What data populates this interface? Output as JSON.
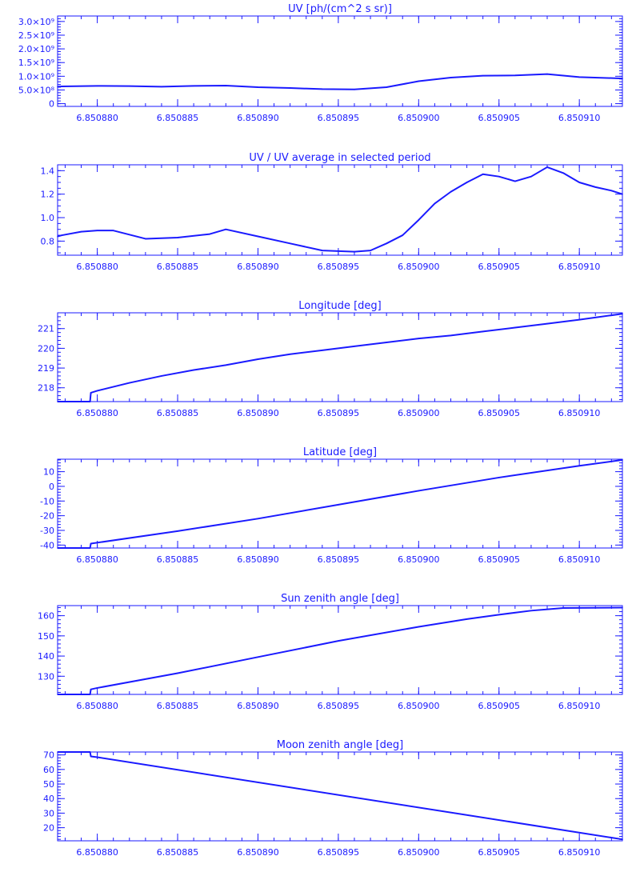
{
  "theme": {
    "color": "#1a1aff"
  },
  "chart_data": [
    {
      "type": "line",
      "title": "UV [ph/(cm^2 s sr)]",
      "xlim": [
        6.85087753,
        6.85091268
      ],
      "ylim": [
        -0.1,
        3.2
      ],
      "xticks": [
        {
          "v": 6.85088,
          "label": "6.850880"
        },
        {
          "v": 6.850885,
          "label": "6.850885"
        },
        {
          "v": 6.85089,
          "label": "6.850890"
        },
        {
          "v": 6.850895,
          "label": "6.850895"
        },
        {
          "v": 6.8509,
          "label": "6.850900"
        },
        {
          "v": 6.850905,
          "label": "6.850905"
        },
        {
          "v": 6.85091,
          "label": "6.850910"
        }
      ],
      "yticks": [
        {
          "v": 0,
          "label": "0"
        },
        {
          "v": 0.5,
          "label": "5.0×10⁸"
        },
        {
          "v": 1.0,
          "label": "1.0×10⁹"
        },
        {
          "v": 1.5,
          "label": "1.5×10⁹"
        },
        {
          "v": 2.0,
          "label": "2.0×10⁹"
        },
        {
          "v": 2.5,
          "label": "2.5×10⁹"
        },
        {
          "v": 3.0,
          "label": "3.0×10⁹"
        }
      ],
      "y_unit_scale": 1000000000.0,
      "y_minor": 0.1,
      "x": [
        6.85087753,
        6.8508778,
        6.85088,
        6.850882,
        6.850884,
        6.850886,
        6.850888,
        6.85089,
        6.850892,
        6.850894,
        6.850896,
        6.850898,
        6.8509,
        6.850902,
        6.850904,
        6.850906,
        6.850908,
        6.85091,
        6.85091268
      ],
      "y": [
        0.62,
        0.63,
        0.65,
        0.64,
        0.62,
        0.65,
        0.66,
        0.6,
        0.57,
        0.53,
        0.52,
        0.6,
        0.82,
        0.95,
        1.02,
        1.03,
        1.08,
        0.97,
        0.92
      ]
    },
    {
      "type": "line",
      "title": "UV / UV average in selected period",
      "xlim": [
        6.85087753,
        6.85091268
      ],
      "ylim": [
        0.68,
        1.45
      ],
      "xticks": [
        {
          "v": 6.85088,
          "label": "6.850880"
        },
        {
          "v": 6.850885,
          "label": "6.850885"
        },
        {
          "v": 6.85089,
          "label": "6.850890"
        },
        {
          "v": 6.850895,
          "label": "6.850895"
        },
        {
          "v": 6.8509,
          "label": "6.850900"
        },
        {
          "v": 6.850905,
          "label": "6.850905"
        },
        {
          "v": 6.85091,
          "label": "6.850910"
        }
      ],
      "yticks": [
        {
          "v": 0.8,
          "label": "0.8"
        },
        {
          "v": 1.0,
          "label": "1.0"
        },
        {
          "v": 1.2,
          "label": "1.2"
        },
        {
          "v": 1.4,
          "label": "1.4"
        }
      ],
      "y_minor": 0.05,
      "x": [
        6.85087753,
        6.8508778,
        6.850879,
        6.85088,
        6.850881,
        6.850883,
        6.850885,
        6.850887,
        6.850888,
        6.85089,
        6.850892,
        6.850894,
        6.850896,
        6.850897,
        6.850898,
        6.850899,
        6.8509,
        6.850901,
        6.850902,
        6.850903,
        6.850904,
        6.850905,
        6.850906,
        6.850907,
        6.850908,
        6.850909,
        6.85091,
        6.850911,
        6.850912,
        6.85091268
      ],
      "y": [
        0.84,
        0.85,
        0.88,
        0.89,
        0.89,
        0.82,
        0.83,
        0.86,
        0.9,
        0.84,
        0.78,
        0.72,
        0.71,
        0.72,
        0.78,
        0.85,
        0.98,
        1.12,
        1.22,
        1.3,
        1.37,
        1.35,
        1.31,
        1.35,
        1.43,
        1.38,
        1.3,
        1.26,
        1.23,
        1.2
      ]
    },
    {
      "type": "line",
      "title": "Longitude [deg]",
      "xlim": [
        6.85087753,
        6.85091268
      ],
      "ylim": [
        217.3,
        221.8
      ],
      "xticks": [
        {
          "v": 6.85088,
          "label": "6.850880"
        },
        {
          "v": 6.850885,
          "label": "6.850885"
        },
        {
          "v": 6.85089,
          "label": "6.850890"
        },
        {
          "v": 6.850895,
          "label": "6.850895"
        },
        {
          "v": 6.8509,
          "label": "6.850900"
        },
        {
          "v": 6.850905,
          "label": "6.850905"
        },
        {
          "v": 6.85091,
          "label": "6.850910"
        }
      ],
      "yticks": [
        {
          "v": 218,
          "label": "218"
        },
        {
          "v": 219,
          "label": "219"
        },
        {
          "v": 220,
          "label": "220"
        },
        {
          "v": 221,
          "label": "221"
        }
      ],
      "y_minor": 0.2,
      "x": [
        6.85087753,
        6.85087955,
        6.8508796,
        6.85088,
        6.850882,
        6.850884,
        6.850886,
        6.850888,
        6.85089,
        6.850892,
        6.850894,
        6.850896,
        6.850898,
        6.8509,
        6.850902,
        6.850904,
        6.850906,
        6.850908,
        6.85091,
        6.85091268
      ],
      "y": [
        217.3,
        217.3,
        217.75,
        217.85,
        218.25,
        218.6,
        218.9,
        219.15,
        219.45,
        219.7,
        219.9,
        220.1,
        220.3,
        220.5,
        220.65,
        220.85,
        221.05,
        221.25,
        221.45,
        221.75
      ]
    },
    {
      "type": "line",
      "title": "Latitude [deg]",
      "xlim": [
        6.85087753,
        6.85091268
      ],
      "ylim": [
        -42,
        18.5
      ],
      "xticks": [
        {
          "v": 6.85088,
          "label": "6.850880"
        },
        {
          "v": 6.850885,
          "label": "6.850885"
        },
        {
          "v": 6.85089,
          "label": "6.850890"
        },
        {
          "v": 6.850895,
          "label": "6.850895"
        },
        {
          "v": 6.8509,
          "label": "6.850900"
        },
        {
          "v": 6.850905,
          "label": "6.850905"
        },
        {
          "v": 6.85091,
          "label": "6.850910"
        }
      ],
      "yticks": [
        {
          "v": -40,
          "label": "-40"
        },
        {
          "v": -30,
          "label": "-30"
        },
        {
          "v": -20,
          "label": "-20"
        },
        {
          "v": -10,
          "label": "-10"
        },
        {
          "v": 0,
          "label": "0"
        },
        {
          "v": 10,
          "label": "10"
        }
      ],
      "y_minor": 2,
      "x": [
        6.85087753,
        6.85087955,
        6.8508796,
        6.850885,
        6.85089,
        6.850895,
        6.8509,
        6.850905,
        6.85091,
        6.85091268
      ],
      "y": [
        -42,
        -42,
        -39,
        -30.5,
        -22,
        -12.5,
        -3,
        6,
        14,
        18
      ]
    },
    {
      "type": "line",
      "title": "Sun zenith angle [deg]",
      "xlim": [
        6.85087753,
        6.85091268
      ],
      "ylim": [
        121,
        165
      ],
      "xticks": [
        {
          "v": 6.85088,
          "label": "6.850880"
        },
        {
          "v": 6.850885,
          "label": "6.850885"
        },
        {
          "v": 6.85089,
          "label": "6.850890"
        },
        {
          "v": 6.850895,
          "label": "6.850895"
        },
        {
          "v": 6.8509,
          "label": "6.850900"
        },
        {
          "v": 6.850905,
          "label": "6.850905"
        },
        {
          "v": 6.85091,
          "label": "6.850910"
        }
      ],
      "yticks": [
        {
          "v": 130,
          "label": "130"
        },
        {
          "v": 140,
          "label": "140"
        },
        {
          "v": 150,
          "label": "150"
        },
        {
          "v": 160,
          "label": "160"
        }
      ],
      "y_minor": 2,
      "x": [
        6.85087753,
        6.85087955,
        6.8508796,
        6.85088,
        6.850885,
        6.85089,
        6.850895,
        6.8509,
        6.850903,
        6.850905,
        6.850907,
        6.850909,
        6.85091268
      ],
      "y": [
        121,
        121,
        123.5,
        124.2,
        131.5,
        139.5,
        147.5,
        154.5,
        158.3,
        160.5,
        162.5,
        163.8,
        164
      ]
    },
    {
      "type": "line",
      "title": "Moon zenith angle [deg]",
      "xlim": [
        6.85087753,
        6.85091268
      ],
      "ylim": [
        11,
        72
      ],
      "xticks": [
        {
          "v": 6.85088,
          "label": "6.850880"
        },
        {
          "v": 6.850885,
          "label": "6.850885"
        },
        {
          "v": 6.85089,
          "label": "6.850890"
        },
        {
          "v": 6.850895,
          "label": "6.850895"
        },
        {
          "v": 6.8509,
          "label": "6.850900"
        },
        {
          "v": 6.850905,
          "label": "6.850905"
        },
        {
          "v": 6.85091,
          "label": "6.850910"
        }
      ],
      "yticks": [
        {
          "v": 20,
          "label": "20"
        },
        {
          "v": 30,
          "label": "30"
        },
        {
          "v": 40,
          "label": "40"
        },
        {
          "v": 50,
          "label": "50"
        },
        {
          "v": 60,
          "label": "60"
        },
        {
          "v": 70,
          "label": "70"
        }
      ],
      "y_minor": 2,
      "x": [
        6.85087753,
        6.85087955,
        6.8508796,
        6.85088,
        6.85091268
      ],
      "y": [
        72,
        72,
        69,
        68.4,
        12
      ]
    }
  ]
}
